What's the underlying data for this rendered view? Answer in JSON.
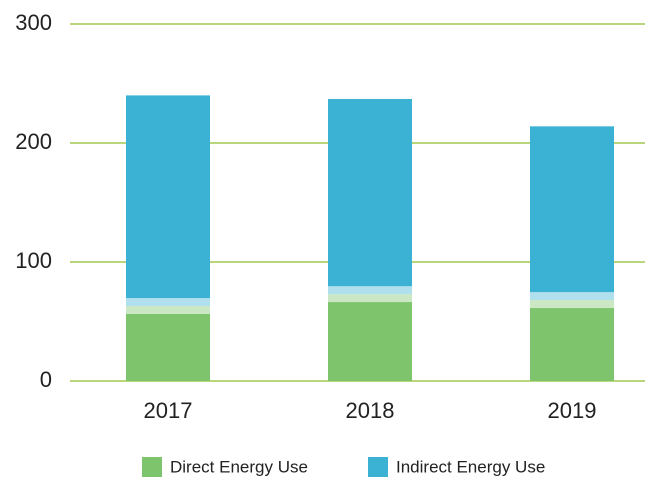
{
  "chart_data": {
    "type": "stacked-bar",
    "categories": [
      "2017",
      "2018",
      "2019"
    ],
    "series": [
      {
        "name": "Direct Energy Use",
        "color": "#7dc46c",
        "values": [
          63,
          73,
          68
        ]
      },
      {
        "name": "Indirect Energy Use",
        "color": "#3bb2d4",
        "values": [
          177,
          164,
          146
        ]
      }
    ],
    "ylim": [
      0,
      300
    ],
    "yticks": [
      0,
      100,
      200,
      300
    ],
    "grid": true,
    "grid_color": "#b9d77a",
    "legend": "bottom"
  }
}
